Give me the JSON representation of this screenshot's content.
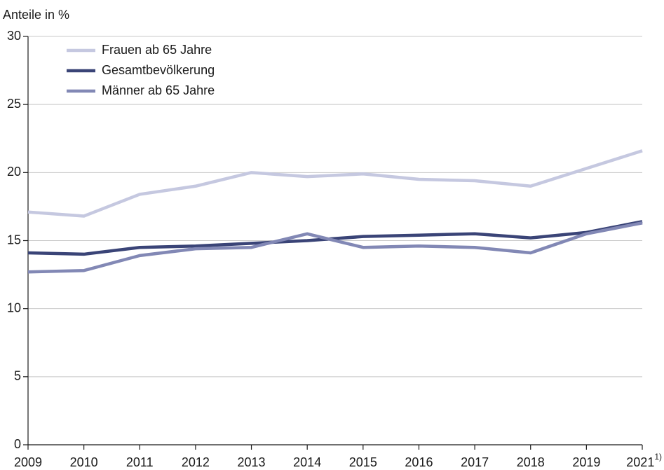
{
  "chart_data": {
    "type": "line",
    "y_axis_label": "Anteile in %",
    "categories": [
      "2009",
      "2010",
      "2011",
      "2012",
      "2013",
      "2014",
      "2015",
      "2016",
      "2017",
      "2018",
      "2019",
      "2021"
    ],
    "x_footnote": "1)",
    "series": [
      {
        "name": "Frauen ab 65 Jahre",
        "color": "#c5c8e0",
        "values": [
          17.1,
          16.8,
          18.4,
          19.0,
          20.0,
          19.7,
          19.9,
          19.5,
          19.4,
          19.0,
          20.3,
          21.6
        ]
      },
      {
        "name": "Gesamtbevölkerung",
        "color": "#3a4477",
        "values": [
          14.1,
          14.0,
          14.5,
          14.6,
          14.8,
          15.0,
          15.3,
          15.4,
          15.5,
          15.2,
          15.6,
          16.4
        ]
      },
      {
        "name": "Männer ab 65 Jahre",
        "color": "#8288b5",
        "values": [
          12.7,
          12.8,
          13.9,
          14.4,
          14.5,
          15.5,
          14.5,
          14.6,
          14.5,
          14.1,
          15.5,
          16.3
        ]
      }
    ],
    "ylim": [
      0,
      30
    ],
    "yticks": [
      0,
      5,
      10,
      15,
      20,
      25,
      30
    ],
    "grid": true,
    "legend": "top-left"
  }
}
